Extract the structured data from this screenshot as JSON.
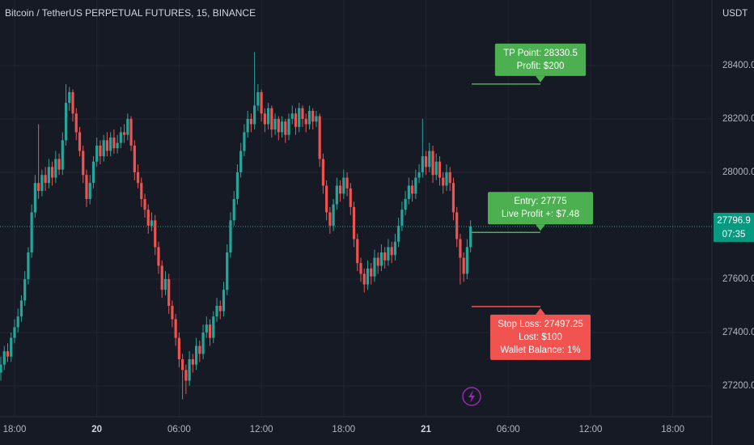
{
  "chart_data": {
    "type": "candlestick",
    "title": "Bitcoin / TetherUS PERPETUAL FUTURES, 15, BINANCE",
    "currency": "USDT",
    "up_color": "#26a69a",
    "down_color": "#ef5350",
    "xlim": [
      -1.06,
      50.85
    ],
    "xticks": [
      {
        "value": 0,
        "label": "18:00"
      },
      {
        "value": 6,
        "label": "20"
      },
      {
        "value": 12,
        "label": "06:00"
      },
      {
        "value": 18,
        "label": "12:00"
      },
      {
        "value": 24,
        "label": "18:00"
      },
      {
        "value": 30,
        "label": "21"
      },
      {
        "value": 36,
        "label": "06:00"
      },
      {
        "value": 42,
        "label": "12:00"
      },
      {
        "value": 48,
        "label": "18:00"
      }
    ],
    "ylim": [
      27085,
      28645
    ],
    "yticks": [
      {
        "value": 27200,
        "label": "27200.0"
      },
      {
        "value": 27400,
        "label": "27400.0"
      },
      {
        "value": 27600,
        "label": "27600.0"
      },
      {
        "value": 28000,
        "label": "28000.0"
      },
      {
        "value": 28200,
        "label": "28200.0"
      },
      {
        "value": 28400,
        "label": "28400.0"
      }
    ],
    "grid": true,
    "x": [
      -1,
      -0.75,
      -0.5,
      -0.25,
      0,
      0.25,
      0.5,
      0.75,
      1,
      1.25,
      1.5,
      1.75,
      2,
      2.25,
      2.5,
      2.75,
      3,
      3.25,
      3.5,
      3.75,
      4,
      4.25,
      4.5,
      4.75,
      5,
      5.25,
      5.5,
      5.75,
      6,
      6.25,
      6.5,
      6.75,
      7,
      7.25,
      7.5,
      7.75,
      8,
      8.25,
      8.5,
      8.75,
      9,
      9.25,
      9.5,
      9.75,
      10,
      10.25,
      10.5,
      10.75,
      11,
      11.25,
      11.5,
      11.75,
      12,
      12.25,
      12.5,
      12.75,
      13,
      13.25,
      13.5,
      13.75,
      14,
      14.25,
      14.5,
      14.75,
      15,
      15.25,
      15.5,
      15.75,
      16,
      16.25,
      16.5,
      16.75,
      17,
      17.25,
      17.5,
      17.75,
      18,
      18.25,
      18.5,
      18.75,
      19,
      19.25,
      19.5,
      19.75,
      20,
      20.25,
      20.5,
      20.75,
      21,
      21.25,
      21.5,
      21.75,
      22,
      22.25,
      22.5,
      22.75,
      23,
      23.25,
      23.5,
      23.75,
      24,
      24.25,
      24.5,
      24.75,
      25,
      25.25,
      25.5,
      25.75,
      26,
      26.25,
      26.5,
      26.75,
      27,
      27.25,
      27.5,
      27.75,
      28,
      28.25,
      28.5,
      28.75,
      29,
      29.25,
      29.5,
      29.75,
      30,
      30.25,
      30.5,
      30.75,
      31,
      31.25,
      31.5,
      31.75,
      32,
      32.25,
      32.5,
      32.75,
      33,
      33.25
    ],
    "open": [
      27250,
      27280,
      27330,
      27310,
      27380,
      27420,
      27460,
      27520,
      27600,
      27700,
      27850,
      27960,
      27930,
      27990,
      27960,
      28020,
      27980,
      28050,
      28010,
      28120,
      28260,
      28300,
      28220,
      28150,
      28080,
      27990,
      27900,
      27960,
      28040,
      28100,
      28060,
      28120,
      28080,
      28130,
      28090,
      28110,
      28150,
      28140,
      28200,
      28100,
      28000,
      27960,
      27900,
      27860,
      27800,
      27820,
      27720,
      27650,
      27560,
      27600,
      27500,
      27450,
      27380,
      27300,
      27260,
      27220,
      27300,
      27280,
      27350,
      27320,
      27400,
      27430,
      27380,
      27460,
      27500,
      27480,
      27560,
      27700,
      27820,
      27900,
      28000,
      28080,
      28150,
      28200,
      28180,
      28250,
      28300,
      28220,
      28180,
      28240,
      28160,
      28200,
      28150,
      28190,
      28140,
      28200,
      28220,
      28170,
      28240,
      28200,
      28180,
      28230,
      28190,
      28210,
      28050,
      27950,
      27850,
      27800,
      27880,
      27950,
      27920,
      27980,
      27940,
      27870,
      27750,
      27660,
      27620,
      27580,
      27640,
      27610,
      27680,
      27650,
      27700,
      27670,
      27720,
      27690,
      27740,
      27800,
      27860,
      27900,
      27950,
      27920,
      27980,
      28000,
      28060,
      28020,
      28080,
      27990,
      28040,
      27980,
      27950,
      28000,
      27960,
      27850,
      27750,
      27680,
      27620,
      27720
    ],
    "high": [
      27310,
      27350,
      27360,
      27400,
      27450,
      27490,
      27540,
      27630,
      27720,
      27880,
      27990,
      28180,
      28010,
      28020,
      28050,
      28040,
      28080,
      28070,
      28150,
      28330,
      28320,
      28310,
      28240,
      28170,
      28100,
      28010,
      27990,
      28060,
      28130,
      28120,
      28140,
      28150,
      28150,
      28160,
      28140,
      28170,
      28180,
      28220,
      28210,
      28120,
      28030,
      27980,
      27920,
      27880,
      27850,
      27840,
      27740,
      27670,
      27630,
      27620,
      27520,
      27470,
      27400,
      27320,
      27280,
      27330,
      27320,
      27380,
      27370,
      27430,
      27460,
      27450,
      27480,
      27530,
      27520,
      27590,
      27730,
      27850,
      27930,
      28030,
      28110,
      28180,
      28230,
      28220,
      28450,
      28330,
      28310,
      28240,
      28260,
      28250,
      28220,
      28210,
      28210,
      28200,
      28220,
      28250,
      28240,
      28260,
      28250,
      28220,
      28250,
      28240,
      28230,
      28220,
      28070,
      27970,
      27870,
      27900,
      27980,
      27970,
      28010,
      28000,
      27960,
      27890,
      27770,
      27680,
      27640,
      27670,
      27660,
      27710,
      27700,
      27730,
      27720,
      27750,
      27740,
      27770,
      27830,
      27890,
      27930,
      27980,
      27970,
      28010,
      28030,
      28200,
      28080,
      28110,
      28100,
      28070,
      28060,
      28000,
      28030,
      28020,
      27980,
      27870,
      27770,
      27700,
      27750,
      27820
    ],
    "low": [
      27220,
      27260,
      27290,
      27290,
      27360,
      27400,
      27440,
      27500,
      27580,
      27680,
      27830,
      27900,
      27910,
      27930,
      27940,
      27950,
      27960,
      27990,
      27990,
      28100,
      28230,
      28190,
      28120,
      28060,
      27960,
      27870,
      27880,
      27940,
      28020,
      28030,
      28040,
      28060,
      28060,
      28070,
      28070,
      28090,
      28110,
      28120,
      28080,
      27970,
      27940,
      27870,
      27830,
      27770,
      27780,
      27690,
      27620,
      27530,
      27540,
      27470,
      27420,
      27350,
      27270,
      27150,
      27170,
      27200,
      27250,
      27260,
      27290,
      27300,
      27380,
      27350,
      27360,
      27440,
      27450,
      27460,
      27540,
      27680,
      27800,
      27880,
      27980,
      28060,
      28130,
      28150,
      28160,
      28230,
      28190,
      28150,
      28160,
      28130,
      28140,
      28120,
      28130,
      28110,
      28120,
      28180,
      28140,
      28150,
      28170,
      28150,
      28160,
      28160,
      28170,
      28020,
      27920,
      27820,
      27770,
      27780,
      27860,
      27890,
      27900,
      27910,
      27840,
      27720,
      27630,
      27590,
      27550,
      27560,
      27580,
      27590,
      27620,
      27630,
      27640,
      27650,
      27660,
      27670,
      27720,
      27780,
      27840,
      27880,
      27890,
      27900,
      27960,
      27980,
      27990,
      28000,
      27960,
      27970,
      27950,
      27920,
      27930,
      27930,
      27820,
      27720,
      27580,
      27590,
      27600,
      27700
    ],
    "close": [
      27280,
      27330,
      27310,
      27380,
      27420,
      27460,
      27520,
      27600,
      27700,
      27850,
      27960,
      27930,
      27990,
      27960,
      28020,
      27980,
      28050,
      28010,
      28120,
      28260,
      28300,
      28220,
      28150,
      28080,
      27990,
      27900,
      27960,
      28040,
      28100,
      28060,
      28120,
      28080,
      28130,
      28090,
      28110,
      28150,
      28140,
      28200,
      28100,
      28000,
      27960,
      27900,
      27860,
      27800,
      27820,
      27720,
      27650,
      27560,
      27600,
      27500,
      27450,
      27380,
      27300,
      27260,
      27220,
      27300,
      27280,
      27350,
      27320,
      27400,
      27430,
      27380,
      27460,
      27500,
      27480,
      27560,
      27700,
      27820,
      27900,
      28000,
      28080,
      28150,
      28200,
      28180,
      28250,
      28300,
      28220,
      28180,
      28240,
      28160,
      28200,
      28150,
      28190,
      28140,
      28200,
      28220,
      28170,
      28240,
      28200,
      28180,
      28230,
      28190,
      28210,
      28050,
      27950,
      27850,
      27800,
      27880,
      27950,
      27920,
      27980,
      27940,
      27870,
      27750,
      27660,
      27620,
      27580,
      27640,
      27610,
      27680,
      27650,
      27700,
      27670,
      27720,
      27690,
      27740,
      27800,
      27860,
      27900,
      27950,
      27920,
      27980,
      28000,
      28060,
      28020,
      28080,
      27990,
      28040,
      27980,
      27950,
      28000,
      27960,
      27850,
      27750,
      27680,
      27620,
      27720,
      27797
    ],
    "last_price": 27796.9,
    "countdown": "07:35",
    "annotations": [
      {
        "lines": [
          "TP Point: 28330.5",
          "Profit: $200"
        ],
        "value": 28330.5,
        "color": "#4caf50"
      },
      {
        "lines": [
          "Entry: 27775",
          "Live Profit +: $7.48"
        ],
        "value": 27775,
        "color": "#4caf50"
      },
      {
        "lines": [
          "Stop Loss: 27497.25",
          "Lost: $100",
          "Wallet Balance: 1%"
        ],
        "value": 27497.25,
        "color": "#f05350"
      }
    ]
  }
}
